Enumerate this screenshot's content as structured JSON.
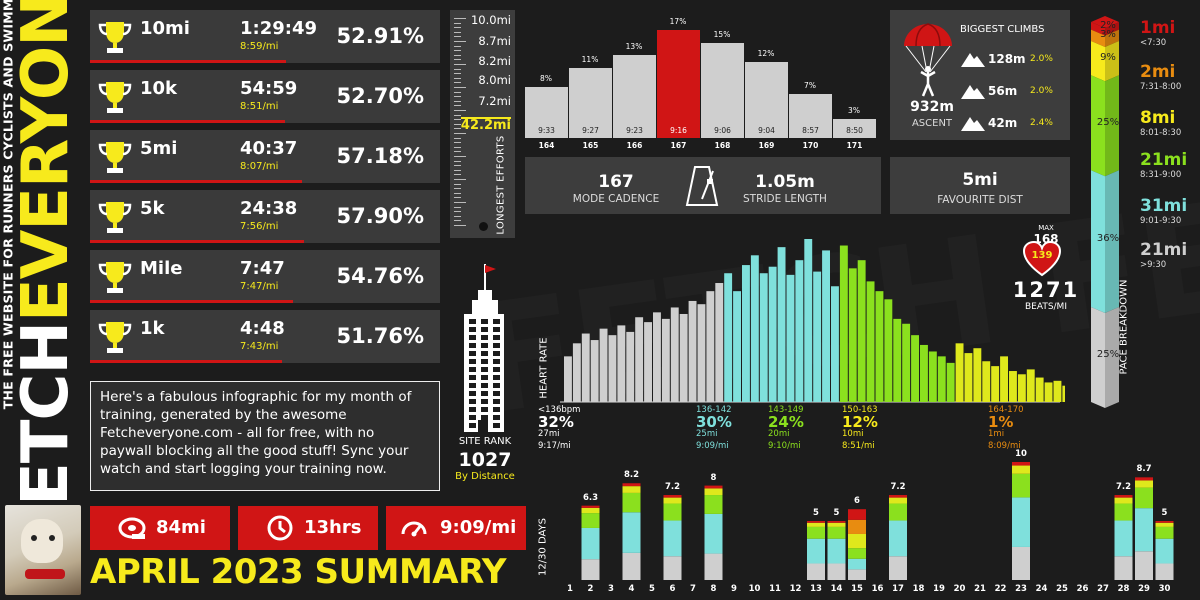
{
  "brand": {
    "main_white": "FETCH",
    "main_yellow": "EVERYONE",
    "tagline": "THE FREE WEBSITE FOR RUNNERS CYCLISTS AND SWIMMERS"
  },
  "colors": {
    "red": "#d01515",
    "yellow": "#f7ea1c",
    "grey_bar": "#cfcfcf",
    "cyan": "#7fe0dc",
    "green": "#8be01e",
    "lime": "#dfe81c",
    "orange": "#e88c10",
    "darkorange": "#c86a0a",
    "panel": "#3d3d3d"
  },
  "pbs": [
    {
      "dist": "10mi",
      "time": "1:29:49",
      "pace": "8:59/mi",
      "pct": "52.91%",
      "score": 0.5291
    },
    {
      "dist": "10k",
      "time": "54:59",
      "pace": "8:51/mi",
      "pct": "52.70%",
      "score": 0.527
    },
    {
      "dist": "5mi",
      "time": "40:37",
      "pace": "8:07/mi",
      "pct": "57.18%",
      "score": 0.5718
    },
    {
      "dist": "5k",
      "time": "24:38",
      "pace": "7:56/mi",
      "pct": "57.90%",
      "score": 0.579
    },
    {
      "dist": "Mile",
      "time": "7:47",
      "pace": "7:47/mi",
      "pct": "54.76%",
      "score": 0.5476
    },
    {
      "dist": "1k",
      "time": "4:48",
      "pace": "7:43/mi",
      "pct": "51.76%",
      "score": 0.5176
    }
  ],
  "intro": "Here's a fabulous infographic for my month of training, generated by the awesome Fetcheveryone.com - all for free, with no paywall blocking all the good stuff! Sync your watch and start logging your training now.",
  "stats": {
    "distance": "84mi",
    "time": "13hrs",
    "pace": "9:09/mi"
  },
  "summary_title": "APRIL 2023 SUMMARY",
  "longest": {
    "labels": [
      "10.0mi",
      "8.7mi",
      "8.2mi",
      "8.0mi",
      "7.2mi"
    ],
    "total": "42.2mi",
    "title": "LONGEST EFFORTS"
  },
  "site_rank": {
    "label": "SITE RANK",
    "value": "1027",
    "sub": "By Distance"
  },
  "cadence": {
    "bars": [
      {
        "cad": "164",
        "pct": "8%",
        "time": "9:33",
        "v": 8
      },
      {
        "cad": "165",
        "pct": "11%",
        "time": "9:27",
        "v": 11
      },
      {
        "cad": "166",
        "pct": "13%",
        "time": "9:23",
        "v": 13
      },
      {
        "cad": "167",
        "pct": "17%",
        "time": "9:16",
        "v": 17,
        "hl": true
      },
      {
        "cad": "168",
        "pct": "15%",
        "time": "9:06",
        "v": 15
      },
      {
        "cad": "169",
        "pct": "12%",
        "time": "9:04",
        "v": 12
      },
      {
        "cad": "170",
        "pct": "7%",
        "time": "8:57",
        "v": 7
      },
      {
        "cad": "171",
        "pct": "3%",
        "time": "8:50",
        "v": 3
      }
    ],
    "mode_value": "167",
    "mode_label": "MODE CADENCE",
    "stride_value": "1.05m",
    "stride_label": "STRIDE LENGTH"
  },
  "fav": {
    "value": "5mi",
    "label": "FAVOURITE DIST"
  },
  "climbs": {
    "title": "BIGGEST CLIMBS",
    "ascent": "932m",
    "ascent_label": "ASCENT",
    "rows": [
      {
        "h": "128m",
        "p": "2.0%"
      },
      {
        "h": "56m",
        "p": "2.0%"
      },
      {
        "h": "42m",
        "p": "2.4%"
      }
    ]
  },
  "heart": {
    "ylabel": "HEART RATE",
    "max_label": "MAX",
    "max": "168",
    "avg": "139",
    "beats": "1271",
    "beats_label": "BEATS/MI",
    "zones": [
      {
        "range": "<136bpm",
        "pct": "32%",
        "dist": "27mi",
        "pace": "9:17/mi",
        "color": "#ffffff"
      },
      {
        "range": "136-142",
        "pct": "30%",
        "dist": "25mi",
        "pace": "9:09/mi",
        "color": "#7fe0dc"
      },
      {
        "range": "143-149",
        "pct": "24%",
        "dist": "20mi",
        "pace": "9:10/mi",
        "color": "#8be01e"
      },
      {
        "range": "150-163",
        "pct": "12%",
        "dist": "10mi",
        "pace": "8:51/mi",
        "color": "#f7ea1c"
      },
      {
        "range": "164-170",
        "pct": "1%",
        "dist": "1mi",
        "pace": "8:09/mi",
        "color": "#e88c10"
      }
    ]
  },
  "chart_data": [
    {
      "type": "bar",
      "title": "Cadence",
      "categories": [
        "164",
        "165",
        "166",
        "167",
        "168",
        "169",
        "170",
        "171"
      ],
      "values": [
        8,
        11,
        13,
        17,
        15,
        12,
        7,
        3
      ],
      "unit": "%"
    },
    {
      "type": "bar",
      "title": "",
      "ylabel": "HEART RATE",
      "zones": [
        "<136bpm",
        "136-142",
        "143-149",
        "150-163",
        "164-170"
      ],
      "zone_pct": [
        32,
        30,
        24,
        12,
        1
      ],
      "values": [
        {
          "z": 0,
          "v": [
            0.28,
            0.36,
            0.42,
            0.38,
            0.45,
            0.41,
            0.47,
            0.43,
            0.52,
            0.49,
            0.55,
            0.51,
            0.58,
            0.54,
            0.62,
            0.6,
            0.68,
            0.73
          ]
        },
        {
          "z": 1,
          "v": [
            0.79,
            0.68,
            0.84,
            0.9,
            0.79,
            0.83,
            0.95,
            0.78,
            0.87,
            1.0,
            0.8,
            0.93,
            0.71
          ]
        },
        {
          "z": 2,
          "v": [
            0.96,
            0.82,
            0.87,
            0.74,
            0.68,
            0.63,
            0.51,
            0.48,
            0.41,
            0.35,
            0.31,
            0.28,
            0.24
          ]
        },
        {
          "z": 3,
          "v": [
            0.36,
            0.3,
            0.33,
            0.25,
            0.22,
            0.28,
            0.19,
            0.17,
            0.2,
            0.15,
            0.12,
            0.13,
            0.1,
            0.09,
            0.11,
            0.08
          ]
        },
        {
          "z": 4,
          "v": [
            0.06,
            0.05,
            0.04,
            0.05,
            0.03,
            0.02,
            0.03,
            0.02
          ]
        }
      ]
    },
    {
      "type": "bar",
      "title": "Pace breakdown",
      "categories": [
        "1mi <7:30",
        "2mi 7:31-8:00",
        "8mi 8:01-8:30",
        "21mi 8:31-9:00",
        "31mi 9:01-9:30",
        "21mi >9:30"
      ],
      "values": [
        2,
        3,
        9,
        25,
        36,
        25
      ],
      "unit": "%"
    },
    {
      "type": "bar",
      "title": "",
      "xlabel": "",
      "ylabel": "12/30 DAYS",
      "categories": [
        "1",
        "2",
        "3",
        "4",
        "5",
        "6",
        "7",
        "8",
        "9",
        "10",
        "11",
        "12",
        "13",
        "14",
        "15",
        "16",
        "17",
        "18",
        "19",
        "20",
        "21",
        "22",
        "23",
        "24",
        "25",
        "26",
        "27",
        "28",
        "29",
        "30"
      ],
      "values": [
        0,
        6.3,
        0,
        8.2,
        0,
        7.2,
        0,
        8,
        0,
        0,
        0,
        0,
        5,
        5,
        6,
        0,
        7.2,
        0,
        0,
        0,
        0,
        0,
        10,
        0,
        0,
        0,
        0,
        7.2,
        8.7,
        5
      ],
      "labels": {
        "2": "6.3",
        "4": "8.2",
        "6": "7.2",
        "8": "8",
        "13": "5",
        "14": "5",
        "15": "6",
        "17": "7.2",
        "23": "10",
        "28": "7.2",
        "29": "8.7",
        "30": "5"
      }
    }
  ],
  "pace": {
    "ylabel": "PACE BREAKDOWN",
    "segments": [
      {
        "dist": "1mi",
        "range": "<7:30",
        "pct": "2%",
        "v": 2,
        "color": "#d01515",
        "lab": "#d01515"
      },
      {
        "dist": "2mi",
        "range": "7:31-8:00",
        "pct": "3%",
        "v": 3,
        "color": "#e88c10",
        "lab": "#e88c10"
      },
      {
        "dist": "8mi",
        "range": "8:01-8:30",
        "pct": "9%",
        "v": 9,
        "color": "#f7ea1c",
        "lab": "#f7ea1c"
      },
      {
        "dist": "21mi",
        "range": "8:31-9:00",
        "pct": "25%",
        "v": 25,
        "color": "#8be01e",
        "lab": "#8be01e"
      },
      {
        "dist": "31mi",
        "range": "9:01-9:30",
        "pct": "36%",
        "v": 36,
        "color": "#7fe0dc",
        "lab": "#7fe0dc"
      },
      {
        "dist": "21mi",
        "range": ">9:30",
        "pct": "25%",
        "v": 25,
        "color": "#cfcfcf",
        "lab": "#cfcfcf"
      }
    ]
  },
  "days": {
    "ylabel": "12/30 DAYS"
  }
}
